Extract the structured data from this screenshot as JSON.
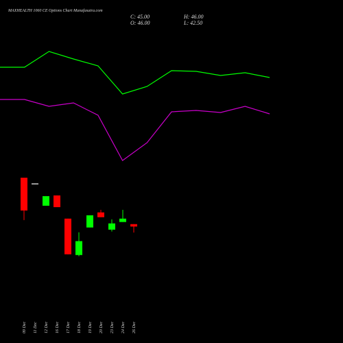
{
  "header": {
    "title": "MAXHEALTH 1060 CE Options Chart Munafasutra.com",
    "close": "C: 45.00",
    "high": "H: 46.00",
    "open": "O: 46.00",
    "low": "L: 42.50"
  },
  "chart_data": [
    {
      "type": "line",
      "categories": [
        null,
        null,
        null,
        null,
        null,
        null,
        null,
        null,
        null,
        null,
        null,
        null
      ],
      "ylim": [
        0,
        100
      ],
      "series": [
        {
          "color": "#00ff00",
          "values": [
            76,
            76,
            87.5,
            82,
            77,
            56.5,
            62,
            73.5,
            73,
            70,
            72,
            68.5
          ]
        },
        {
          "color": "#cc00cc",
          "values": [
            52.5,
            52.5,
            47.5,
            50,
            41,
            8,
            21,
            43.5,
            44.5,
            43,
            47.5,
            42
          ]
        }
      ]
    },
    {
      "type": "candlestick",
      "categories": [
        "09 Dec",
        "11 Dec",
        "12 Dec",
        "16 Dec",
        "17 Dec",
        "18 Dec",
        "19 Dec",
        "20 Dec",
        "23 Dec",
        "24 Dec",
        "26 Dec"
      ],
      "open": [
        65.4,
        63,
        53.7,
        58,
        48.3,
        33.1,
        44.6,
        50.9,
        43.7,
        46.9,
        46
      ],
      "high": [
        65.4,
        63,
        57.7,
        58,
        48.3,
        42.6,
        49.7,
        52,
        48,
        52,
        46
      ],
      "low": [
        47.7,
        63,
        53.7,
        53.1,
        33.4,
        32.6,
        44.6,
        48.9,
        42.9,
        46.9,
        42.5
      ],
      "close": [
        51.7,
        63,
        57.7,
        53.1,
        33.4,
        38.9,
        49.7,
        48.9,
        46.3,
        48.3,
        45
      ],
      "up_color": "#00ff00",
      "down_color": "#ff0000",
      "flat_color": "#ffffff",
      "ylim": [
        25,
        68
      ]
    }
  ]
}
